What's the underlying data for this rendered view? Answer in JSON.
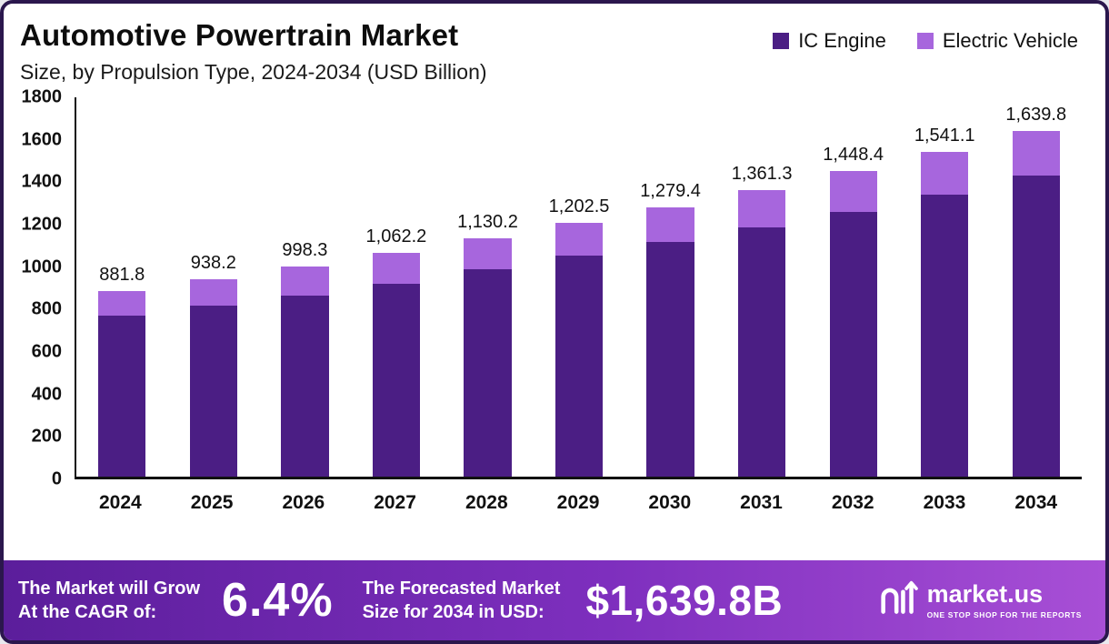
{
  "header": {
    "title": "Automotive Powertrain Market",
    "subtitle": "Size, by Propulsion Type, 2024-2034 (USD Billion)"
  },
  "colors": {
    "ic_engine": "#4b1e84",
    "electric_vehicle": "#a766dd",
    "frame_border": "#2b174d",
    "footer_gradient_start": "#5b1e9b",
    "footer_gradient_end": "#a84fd6"
  },
  "chart_data": {
    "type": "bar",
    "stacked": true,
    "title": "Automotive Powertrain Market",
    "subtitle": "Size, by Propulsion Type, 2024-2034 (USD Billion)",
    "xlabel": "",
    "ylabel": "USD Billion",
    "ylim": [
      0,
      1800
    ],
    "yticks": [
      1800,
      1600,
      1400,
      1200,
      1000,
      800,
      600,
      400,
      200,
      0
    ],
    "grid": false,
    "legend_position": "top-right",
    "categories": [
      "2024",
      "2025",
      "2026",
      "2027",
      "2028",
      "2029",
      "2030",
      "2031",
      "2032",
      "2033",
      "2034"
    ],
    "series": [
      {
        "name": "IC Engine",
        "color": "#4b1e84",
        "values": [
          765,
          812,
          861,
          917,
          984,
          1048,
          1114,
          1184,
          1258,
          1337,
          1429
        ]
      },
      {
        "name": "Electric Vehicle",
        "color": "#a766dd",
        "values": [
          116.8,
          126.2,
          137.3,
          145.2,
          146.2,
          154.5,
          165.4,
          177.3,
          190.4,
          204.1,
          210.8
        ]
      }
    ],
    "totals": [
      881.8,
      938.2,
      998.3,
      1062.2,
      1130.2,
      1202.5,
      1279.4,
      1361.3,
      1448.4,
      1541.1,
      1639.8
    ],
    "totals_labels": [
      "881.8",
      "938.2",
      "998.3",
      "1,062.2",
      "1,130.2",
      "1,202.5",
      "1,279.4",
      "1,361.3",
      "1,448.4",
      "1,541.1",
      "1,639.8"
    ]
  },
  "legend": [
    {
      "label": "IC Engine",
      "color": "#4b1e84"
    },
    {
      "label": "Electric Vehicle",
      "color": "#a766dd"
    }
  ],
  "footer": {
    "cagr_label_line1": "The Market will Grow",
    "cagr_label_line2": "At the CAGR of:",
    "cagr_value": "6.4%",
    "forecast_label_line1": "The Forecasted Market",
    "forecast_label_line2": "Size for 2034 in USD:",
    "forecast_value": "$1,639.8B",
    "brand": "market.us",
    "brand_tagline": "ONE STOP SHOP FOR THE REPORTS"
  }
}
